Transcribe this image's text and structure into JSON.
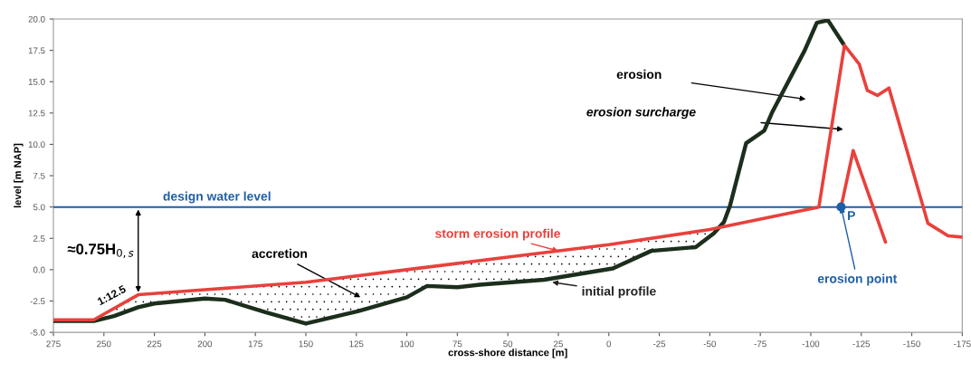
{
  "chart_data": {
    "type": "line",
    "xlabel": "cross-shore distance [m]",
    "ylabel": "level [m NAP]",
    "xlim": [
      275,
      -175
    ],
    "xticks": [
      275,
      250,
      225,
      200,
      175,
      150,
      125,
      100,
      75,
      50,
      25,
      0,
      -25,
      -50,
      -75,
      -100,
      -125,
      -150,
      -175
    ],
    "ylim": [
      -5.0,
      20.0
    ],
    "yticks": [
      {
        "value": -5,
        "label": "-5.0"
      },
      -2.5,
      {
        "value": 0,
        "label": "0.0"
      },
      2.5,
      {
        "value": 5,
        "label": "5.0"
      },
      7.5,
      {
        "value": 10,
        "label": "10.0"
      },
      12.5,
      {
        "value": 15,
        "label": "15.0"
      },
      17.5,
      {
        "value": 20,
        "label": "20.0"
      }
    ],
    "grid": false,
    "series": [
      {
        "name": "initial profile",
        "color": "#1c2e1c",
        "x": [
          275,
          255,
          245,
          233,
          225,
          200,
          190,
          170,
          150,
          124,
          100,
          90,
          75,
          64,
          32,
          -2,
          -21,
          -43,
          -52,
          -57,
          -60,
          -68,
          -77,
          -81,
          -97,
          -103,
          -108.5,
          -116.2
        ],
        "values": [
          -4.1,
          -4.1,
          -3.7,
          -3.0,
          -2.7,
          -2.3,
          -2.4,
          -3.4,
          -4.3,
          -3.3,
          -2.2,
          -1.3,
          -1.4,
          -1.2,
          -0.8,
          0.1,
          1.5,
          1.8,
          2.9,
          3.8,
          5.1,
          10.1,
          11.1,
          12.6,
          17.5,
          19.7,
          19.9,
          18.0
        ]
      },
      {
        "name": "storm erosion profile",
        "color": "#e8413c",
        "x": [
          275,
          255,
          233,
          200,
          150,
          100,
          50,
          0,
          -50,
          -104,
          -116.7,
          -124,
          -128,
          -133,
          -138.7,
          -158,
          -168,
          -175
        ],
        "values": [
          -4.0,
          -4.0,
          -2.0,
          -1.6,
          -1.0,
          0.0,
          1.0,
          2.0,
          3.2,
          5.0,
          17.9,
          16.4,
          14.3,
          13.9,
          14.5,
          3.7,
          2.7,
          2.6
        ]
      },
      {
        "color": "#e8413c",
        "x": [
          -115,
          -121,
          -137
        ],
        "values": [
          5.0,
          9.5,
          2.2
        ]
      },
      {
        "name": "erosion point",
        "color": "#1f5fa8",
        "type": "scatter",
        "marker": "circle",
        "x": [
          -115
        ],
        "values": [
          5.0
        ]
      }
    ],
    "ref_lines": [
      {
        "axis": "y",
        "value": 5.0,
        "label": "design water level",
        "color": "#1f5fa8"
      }
    ],
    "annotations": [
      {
        "text": "≈0.75H$_{0,s}$",
        "x": 233,
        "y": -2.0
      },
      {
        "text": "1:12.5",
        "x": 244,
        "y": -3.0
      },
      "accretion",
      "erosion",
      "erosion surcharge",
      {
        "text": "P",
        "x": -115,
        "y": 5.0
      }
    ]
  }
}
